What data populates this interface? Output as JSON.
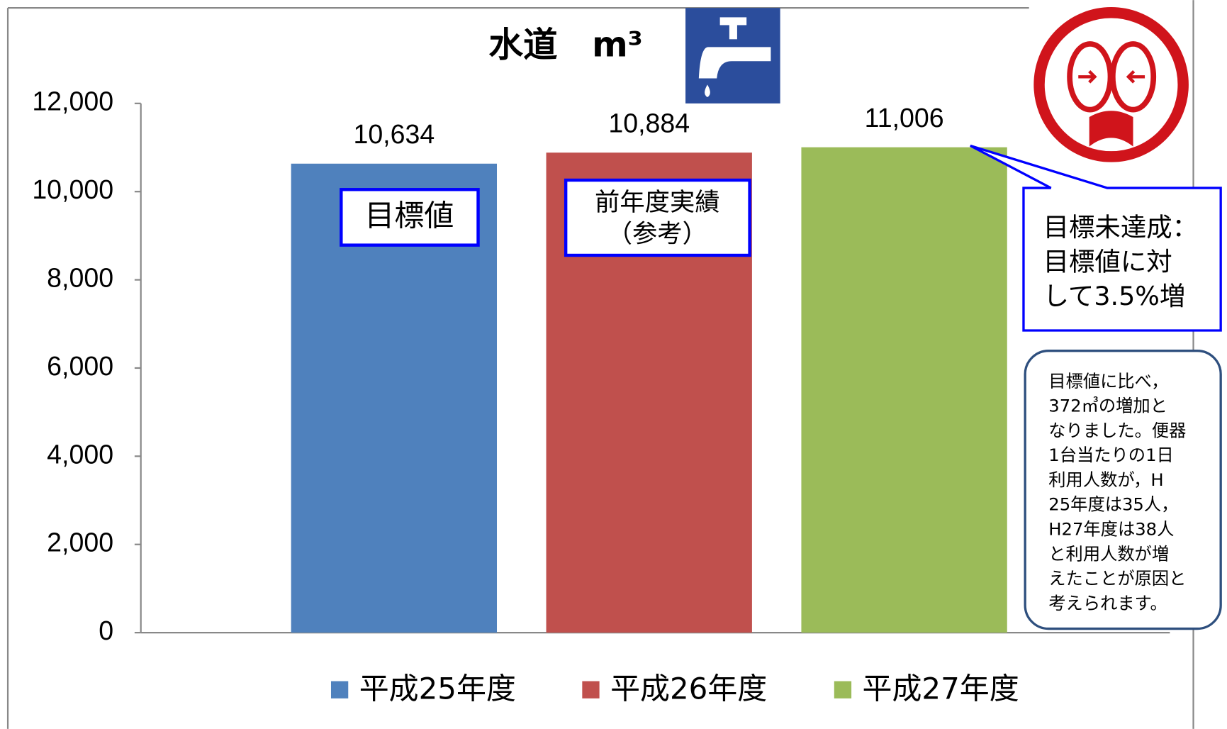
{
  "chart_data": {
    "type": "bar",
    "title": "水道　m³",
    "categories": [
      null
    ],
    "series": [
      {
        "name": "平成25年度",
        "color": "#4f81bd",
        "values": [
          10634
        ],
        "value_labels": [
          "10,634"
        ]
      },
      {
        "name": "平成26年度",
        "color": "#c0504d",
        "values": [
          10884
        ],
        "value_labels": [
          "10,884"
        ]
      },
      {
        "name": "平成27年度",
        "color": "#9bbb59",
        "values": [
          11006
        ],
        "value_labels": [
          "11,006"
        ]
      }
    ],
    "ylim": [
      0,
      12000
    ],
    "yticks": [
      0,
      {
        "value": 2000,
        "label": "2,000"
      },
      {
        "value": 4000,
        "label": "4,000"
      },
      {
        "value": 6000,
        "label": "6,000"
      },
      {
        "value": 8000,
        "label": "8,000"
      },
      {
        "value": 10000,
        "label": "10,000"
      },
      {
        "value": 12000,
        "label": "12,000"
      }
    ],
    "legend": "bottom",
    "annotations": [
      {
        "lines": [
          "目標値"
        ]
      },
      {
        "lines": [
          "前年度実績",
          "（参考）"
        ]
      },
      {
        "lines": [
          "目標未達成：",
          "目標値に対",
          "して3.5%増"
        ]
      },
      {
        "lines": [
          "目標値に比べ，",
          "372㎥の増加と",
          "なりました。便器",
          "1台当たりの1日",
          "利用人数が，H",
          "25年度は35人，",
          "H27年度は38人",
          "と利用人数が増",
          "えたことが原因と",
          "考えられます。"
        ]
      }
    ]
  }
}
